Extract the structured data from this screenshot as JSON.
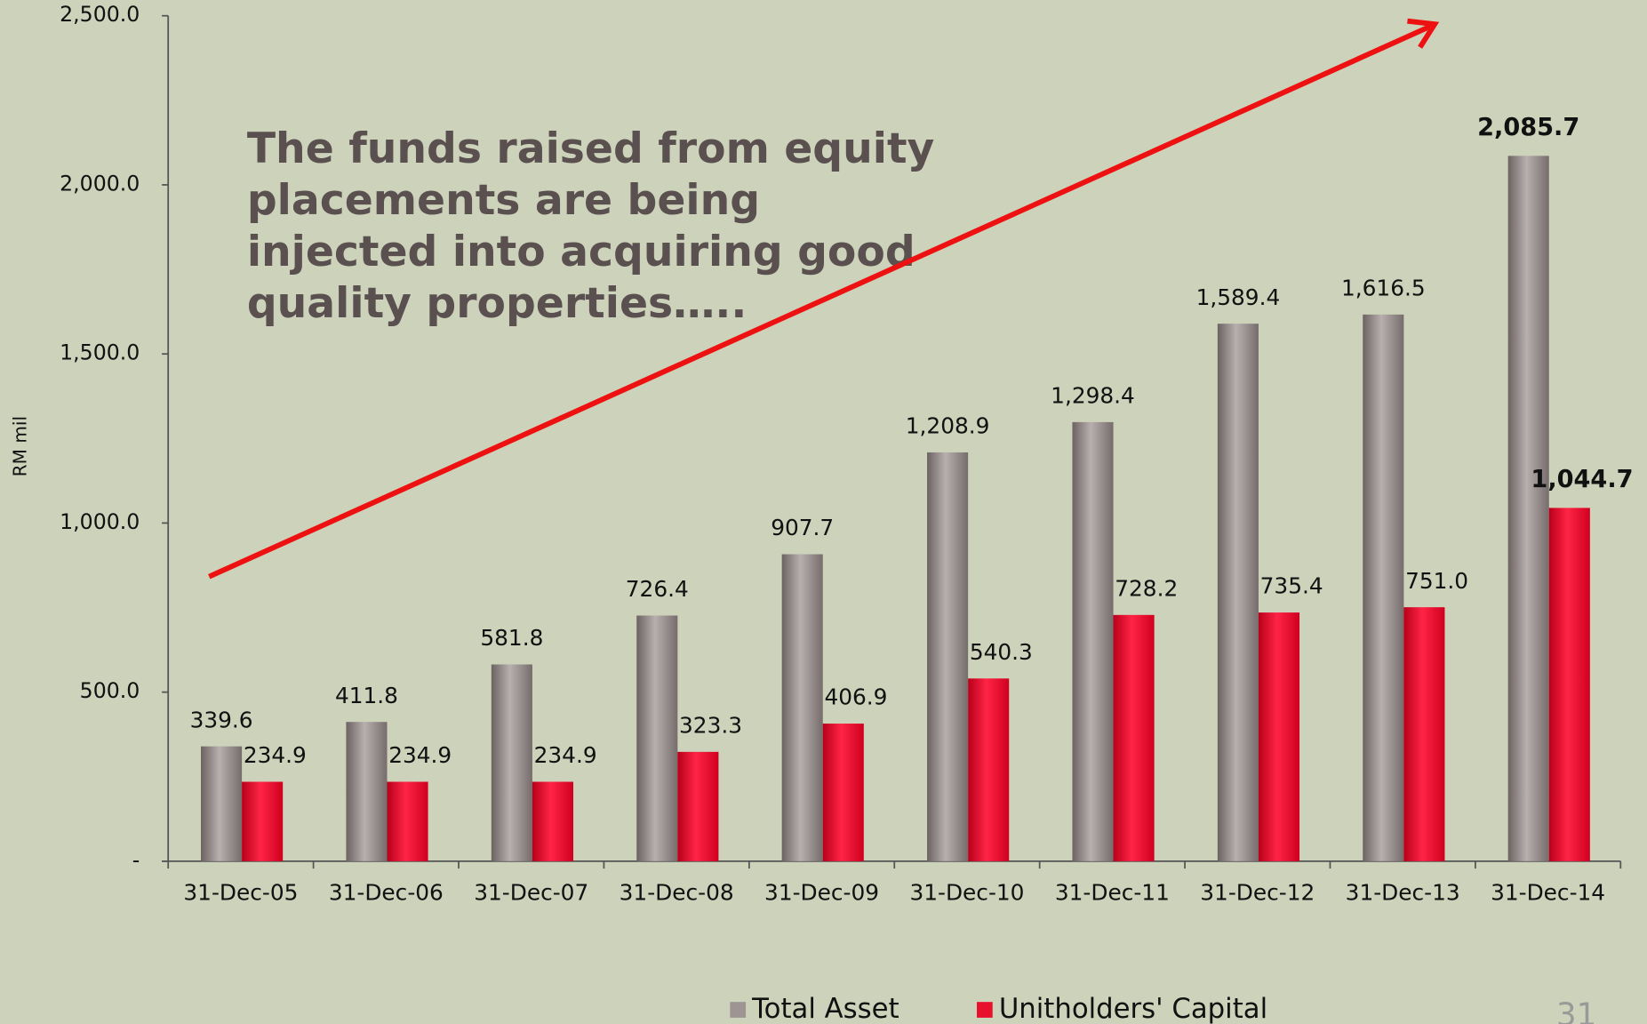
{
  "chart_data": {
    "type": "bar",
    "y_axis_label": "RM mil",
    "annotation": [
      "The funds raised from equity",
      "placements are being",
      "injected into acquiring good",
      "quality properties….."
    ],
    "categories": [
      "31-Dec-05",
      "31-Dec-06",
      "31-Dec-07",
      "31-Dec-08",
      "31-Dec-09",
      "31-Dec-10",
      "31-Dec-11",
      "31-Dec-12",
      "31-Dec-13",
      "31-Dec-14"
    ],
    "series": [
      {
        "name": "Total Asset",
        "color": "#9e9494",
        "values": [
          339.6,
          411.8,
          581.8,
          726.4,
          907.7,
          1208.9,
          1298.4,
          1589.4,
          1616.5,
          2085.7
        ],
        "value_labels": [
          "339.6",
          "411.8",
          "581.8",
          "726.4",
          "907.7",
          "1,208.9",
          "1,298.4",
          "1,589.4",
          "1,616.5",
          "2,085.7"
        ]
      },
      {
        "name": "Unitholders' Capital",
        "color": "#e8112d",
        "values": [
          234.9,
          234.9,
          234.9,
          323.3,
          406.9,
          540.3,
          728.2,
          735.4,
          751.0,
          1044.7
        ],
        "value_labels": [
          "234.9",
          "234.9",
          "234.9",
          "323.3",
          "406.9",
          "540.3",
          "728.2",
          "735.4",
          "751.0",
          "1,044.7"
        ]
      }
    ],
    "ylim": [
      0,
      2500
    ],
    "yticks": [
      {
        "value": 0,
        "label": "-"
      },
      {
        "value": 500,
        "label": "500.0"
      },
      {
        "value": 1000,
        "label": "1,000.0"
      },
      {
        "value": 1500,
        "label": "1,500.0"
      },
      {
        "value": 2000,
        "label": "2,000.0"
      },
      {
        "value": 2500,
        "label": "2,500.0"
      }
    ],
    "legend": "bottom",
    "page_number": "31"
  }
}
